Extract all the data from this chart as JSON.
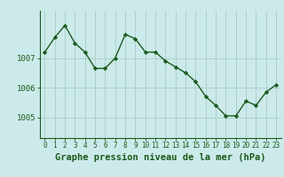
{
  "x": [
    0,
    1,
    2,
    3,
    4,
    5,
    6,
    7,
    8,
    9,
    10,
    11,
    12,
    13,
    14,
    15,
    16,
    17,
    18,
    19,
    20,
    21,
    22,
    23
  ],
  "y": [
    1007.2,
    1007.7,
    1008.1,
    1007.5,
    1007.2,
    1006.65,
    1006.65,
    1007.0,
    1007.8,
    1007.65,
    1007.2,
    1007.2,
    1006.9,
    1006.7,
    1006.5,
    1006.2,
    1005.7,
    1005.4,
    1005.05,
    1005.05,
    1005.55,
    1005.4,
    1005.85,
    1006.1
  ],
  "line_color": "#1a5c1a",
  "marker": "D",
  "marker_size": 2.2,
  "linewidth": 1.0,
  "bg_color": "#cceaea",
  "grid_color": "#aacccc",
  "tick_label_color": "#1a5c1a",
  "xlabel": "Graphe pression niveau de la mer (hPa)",
  "xlabel_color": "#1a5c1a",
  "xlabel_fontsize": 7.5,
  "ytick_labels": [
    "1005",
    "1006",
    "1007"
  ],
  "ytick_values": [
    1005,
    1006,
    1007
  ],
  "ylim": [
    1004.3,
    1008.6
  ],
  "xlim": [
    -0.5,
    23.5
  ],
  "xtick_fontsize": 5.5,
  "ytick_fontsize": 6.5
}
